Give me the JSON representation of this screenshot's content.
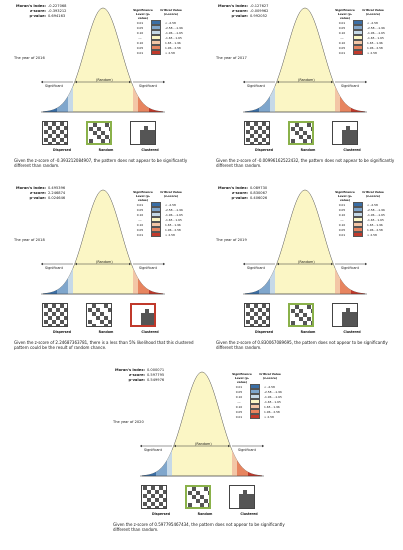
{
  "panels": [
    {
      "year": "The year of 2016",
      "morans_label": "Moran's Index:",
      "morans": "-0.227068",
      "z_label": "z-score:",
      "z": "-0.393212",
      "p_label": "p-value:",
      "p": "0.694163",
      "caption": "Given the z-score of -0.393212084907, the pattern does not appear to be significantly different than random.",
      "highlight": "random"
    },
    {
      "year": "The year of 2017",
      "morans_label": "Moran's Index:",
      "morans": "-0.127627",
      "z_label": "z-score:",
      "z": "-0.009962",
      "p_label": "p-value:",
      "p": "0.992052",
      "caption": "Given the z-score of -0.00996162522432, the pattern does not appear to be significantly different than random.",
      "highlight": "random"
    },
    {
      "year": "The year of 2018",
      "morans_label": "Moran's Index:",
      "morans": "0.495396",
      "z_label": "z-score:",
      "z": "2.246874",
      "p_label": "p-value:",
      "p": "0.024646",
      "caption": "Given the z-score of 2.24687363781, there is a less than 5% likelihood that this clustered pattern could be the result of random chance.",
      "highlight": "clustered"
    },
    {
      "year": "The year of 2019",
      "morans_label": "Moran's Index:",
      "morans": "0.089730",
      "z_label": "z-score:",
      "z": "0.830067",
      "p_label": "p-value:",
      "p": "0.406026",
      "caption": "Given the z-score of 0.830067089695, the pattern does not appear to be significantly different than random.",
      "highlight": "random"
    },
    {
      "year": "The year of 2020",
      "morans_label": "Moran's Index:",
      "morans": "0.000071",
      "z_label": "z-score:",
      "z": "0.597795",
      "p_label": "p-value:",
      "p": "0.549976",
      "caption": "Given the z-score of 0.597795467434, the pattern does not appear to be significantly different than random.",
      "highlight": "random"
    }
  ],
  "legend": {
    "sig_header": "Significance Level (p-value)",
    "cv_header": "Critical Value (z-score)",
    "rows": [
      {
        "p": "0.01",
        "cv": "< -2.58",
        "color": "#3a6ea5"
      },
      {
        "p": "0.05",
        "cv": "-2.58 - -1.96",
        "color": "#7fa6cc"
      },
      {
        "p": "0.10",
        "cv": "-1.96 - -1.65",
        "color": "#c6d9e8"
      },
      {
        "p": "---",
        "cv": "-1.65 - 1.65",
        "color": "#fbf6c5"
      },
      {
        "p": "0.10",
        "cv": "1.65 - 1.96",
        "color": "#f3c6a6"
      },
      {
        "p": "0.05",
        "cv": "1.96 - 2.58",
        "color": "#e7845f"
      },
      {
        "p": "0.01",
        "cv": "> 2.58",
        "color": "#c1392b"
      }
    ]
  },
  "curve_labels": {
    "significant_left": "Significant",
    "random": "(Random)",
    "significant_right": "Significant"
  },
  "tile_labels": [
    "Dispersed",
    "Random",
    "Clustered"
  ]
}
